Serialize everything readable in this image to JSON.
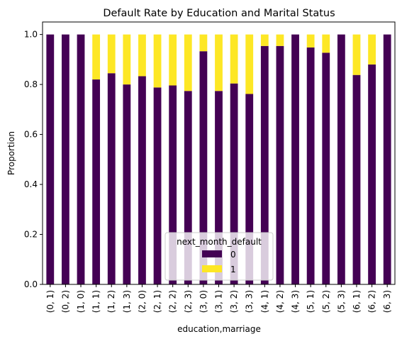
{
  "chart_data": {
    "type": "bar",
    "stacked": true,
    "title": "Default Rate by Education and Marital Status",
    "xlabel": "education,marriage",
    "ylabel": "Proportion",
    "ylim": [
      0,
      1.05
    ],
    "yticks": [
      "0.0",
      "0.2",
      "0.4",
      "0.6",
      "0.8",
      "1.0"
    ],
    "categories": [
      "(0, 1)",
      "(0, 2)",
      "(1, 0)",
      "(1, 1)",
      "(1, 2)",
      "(1, 3)",
      "(2, 0)",
      "(2, 1)",
      "(2, 2)",
      "(2, 3)",
      "(3, 0)",
      "(3, 1)",
      "(3, 2)",
      "(3, 3)",
      "(4, 1)",
      "(4, 2)",
      "(4, 3)",
      "(5, 1)",
      "(5, 2)",
      "(5, 3)",
      "(6, 1)",
      "(6, 2)",
      "(6, 3)"
    ],
    "series": [
      {
        "name": "0",
        "color": "#440154",
        "values": [
          1.0,
          1.0,
          1.0,
          0.82,
          0.845,
          0.8,
          0.833,
          0.788,
          0.796,
          0.774,
          0.933,
          0.774,
          0.804,
          0.762,
          0.954,
          0.954,
          1.0,
          0.948,
          0.927,
          1.0,
          0.838,
          0.88,
          1.0
        ]
      },
      {
        "name": "1",
        "color": "#fde725",
        "values": [
          0.0,
          0.0,
          0.0,
          0.18,
          0.155,
          0.2,
          0.167,
          0.212,
          0.204,
          0.226,
          0.067,
          0.226,
          0.196,
          0.238,
          0.046,
          0.046,
          0.0,
          0.052,
          0.073,
          0.0,
          0.162,
          0.12,
          0.0
        ]
      }
    ],
    "legend": {
      "title": "next_month_default",
      "placement": "lower-center"
    },
    "grid": false
  }
}
